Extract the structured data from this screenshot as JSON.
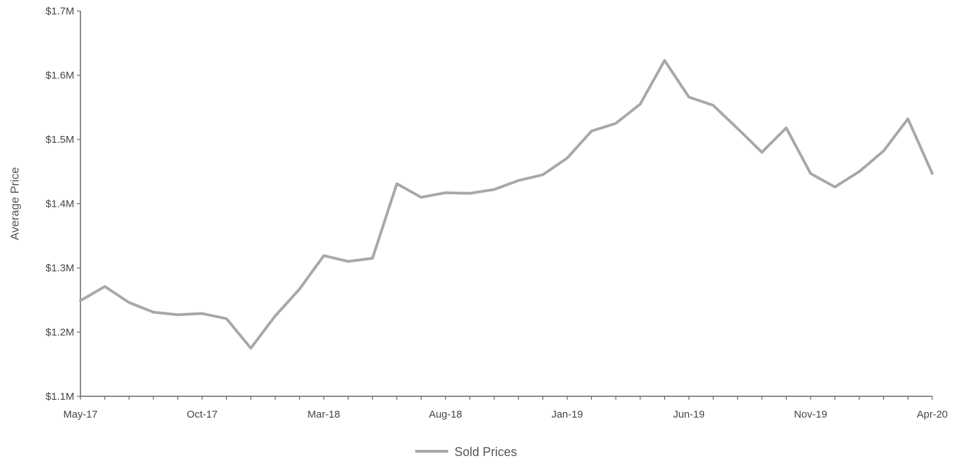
{
  "chart_data": {
    "type": "line",
    "title": "",
    "xlabel": "",
    "ylabel": "Average Price",
    "ylim": [
      1.1,
      1.7
    ],
    "y_unit": "$M",
    "y_ticks": [
      "$1.1M",
      "$1.2M",
      "$1.3M",
      "$1.4M",
      "$1.5M",
      "$1.6M",
      "$1.7M"
    ],
    "y_tick_values": [
      1.1,
      1.2,
      1.3,
      1.4,
      1.5,
      1.6,
      1.7
    ],
    "x": [
      "May-17",
      "Jun-17",
      "Jul-17",
      "Aug-17",
      "Sep-17",
      "Oct-17",
      "Nov-17",
      "Dec-17",
      "Jan-18",
      "Feb-18",
      "Mar-18",
      "Apr-18",
      "May-18",
      "Jun-18",
      "Jul-18",
      "Aug-18",
      "Sep-18",
      "Oct-18",
      "Nov-18",
      "Dec-18",
      "Jan-19",
      "Feb-19",
      "Mar-19",
      "Apr-19",
      "May-19",
      "Jun-19",
      "Jul-19",
      "Aug-19",
      "Sep-19",
      "Oct-19",
      "Nov-19",
      "Dec-19",
      "Jan-20",
      "Feb-20",
      "Mar-20",
      "Apr-20"
    ],
    "x_tick_labels": [
      "May-17",
      "Oct-17",
      "Mar-18",
      "Aug-18",
      "Jan-19",
      "Jun-19",
      "Nov-19",
      "Apr-20"
    ],
    "series": [
      {
        "name": "Sold Prices",
        "values": [
          1.249,
          1.271,
          1.246,
          1.231,
          1.227,
          1.229,
          1.221,
          1.175,
          1.225,
          1.267,
          1.319,
          1.31,
          1.315,
          1.431,
          1.41,
          1.417,
          1.416,
          1.422,
          1.436,
          1.445,
          1.471,
          1.513,
          1.525,
          1.555,
          1.623,
          1.566,
          1.553,
          1.517,
          1.48,
          1.518,
          1.447,
          1.426,
          1.45,
          1.482,
          1.532,
          1.447
        ]
      }
    ],
    "grid": false,
    "legend_position": "bottom-center",
    "colors": {
      "series": "#a8a8a8",
      "axis": "#666666"
    }
  }
}
